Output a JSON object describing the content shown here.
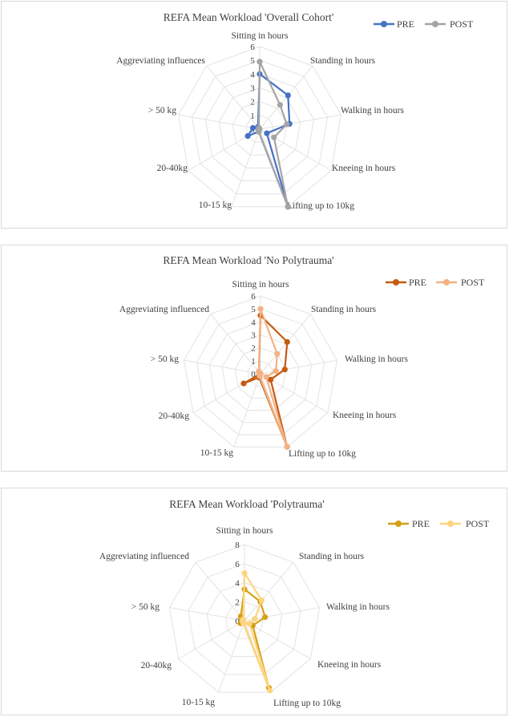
{
  "chart_data": [
    {
      "type": "radar",
      "title": "REFA Mean Workload 'Overall Cohort'",
      "categories": [
        "Sitting in hours",
        "Standing in hours",
        "Walking in hours",
        "Kneeing in hours",
        "Lifting up to 10kg",
        "10-15 kg",
        "20-40kg",
        "> 50 kg",
        "Aggreviating influences"
      ],
      "rlim": [
        0,
        6
      ],
      "ticks": [
        "0",
        "1",
        "2",
        "3",
        "4",
        "5",
        "6"
      ],
      "legend_position": "top-right",
      "series": [
        {
          "name": "PRE",
          "color": "#4472c4",
          "values": [
            4.0,
            3.2,
            2.2,
            0.6,
            6.0,
            0.2,
            1.0,
            0.5,
            0.2
          ]
        },
        {
          "name": "POST",
          "color": "#a5a5a5",
          "values": [
            4.9,
            2.3,
            2.0,
            1.2,
            6.0,
            0.2,
            0.1,
            0.0,
            0.1
          ]
        }
      ]
    },
    {
      "type": "radar",
      "title": "REFA Mean Workload 'No Polytrauma'",
      "categories": [
        "Sitting in hours",
        "Standing in hours",
        "Walking in hours",
        "Kneeing in hours",
        "Lifting up to 10kg",
        "10-15 kg",
        "20-40kg",
        "> 50 kg",
        "Aggreviating influenced"
      ],
      "rlim": [
        0,
        6
      ],
      "ticks": [
        "0",
        "1",
        "2",
        "3",
        "4",
        "5",
        "6"
      ],
      "legend_position": "top-right",
      "series": [
        {
          "name": "PRE",
          "color": "#c55a11",
          "values": [
            4.5,
            3.2,
            1.9,
            0.9,
            6.0,
            0.3,
            1.5,
            0.0,
            0.2
          ]
        },
        {
          "name": "POST",
          "color": "#f4b183",
          "values": [
            5.0,
            2.0,
            1.2,
            0.5,
            6.0,
            0.2,
            0.1,
            0.0,
            0.2
          ]
        }
      ]
    },
    {
      "type": "radar",
      "title": "REFA Mean Workload 'Polytrauma'",
      "categories": [
        "Sitting in hours",
        "Standing in hours",
        "Walking in hours",
        "Kneeing in hours",
        "Lifting up to 10kg",
        "10-15 kg",
        "20-40kg",
        "> 50 kg",
        "Aggreviating influenced"
      ],
      "rlim": [
        0,
        8
      ],
      "ticks": [
        "0",
        "2",
        "4",
        "6",
        "8"
      ],
      "legend_position": "top-right",
      "series": [
        {
          "name": "PRE",
          "color": "#d4a017",
          "values": [
            3.3,
            2.6,
            2.2,
            1.0,
            7.5,
            0.3,
            0.5,
            0.3,
            0.6
          ]
        },
        {
          "name": "POST",
          "color": "#ffd47f",
          "values": [
            5.0,
            2.8,
            1.1,
            0.6,
            7.8,
            0.3,
            0.2,
            0.2,
            0.2
          ]
        }
      ]
    }
  ]
}
